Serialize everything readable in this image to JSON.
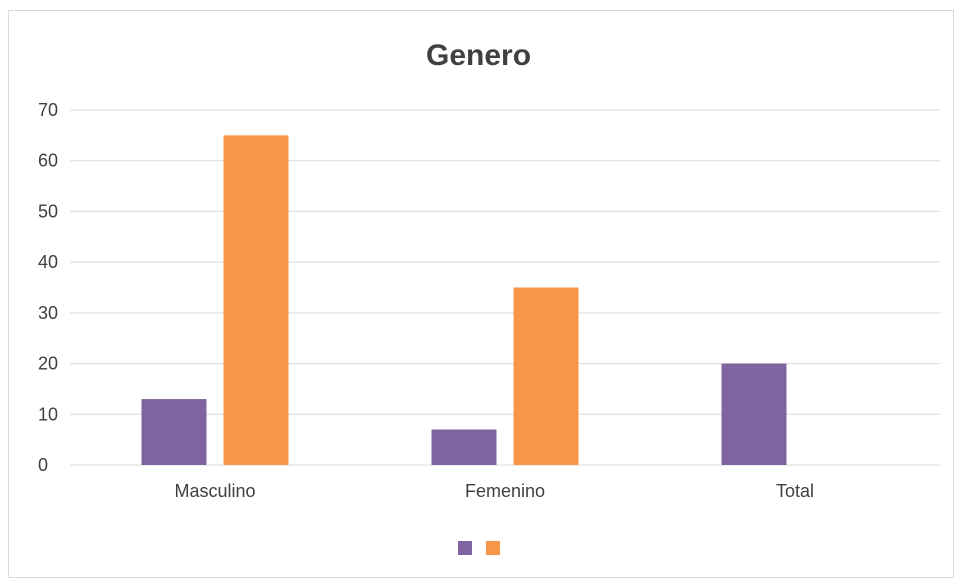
{
  "chart_data": {
    "type": "bar",
    "title": "Genero",
    "categories": [
      "Masculino",
      "Femenino",
      "Total"
    ],
    "series": [
      {
        "values": [
          13,
          7,
          20
        ],
        "color": "#8064a2"
      },
      {
        "values": [
          65,
          35,
          null
        ],
        "color": "#f79646"
      }
    ],
    "ylim": [
      0,
      70
    ],
    "yticks": [
      0,
      10,
      20,
      30,
      40,
      50,
      60,
      70
    ],
    "grid": true,
    "legend": "bottom"
  }
}
